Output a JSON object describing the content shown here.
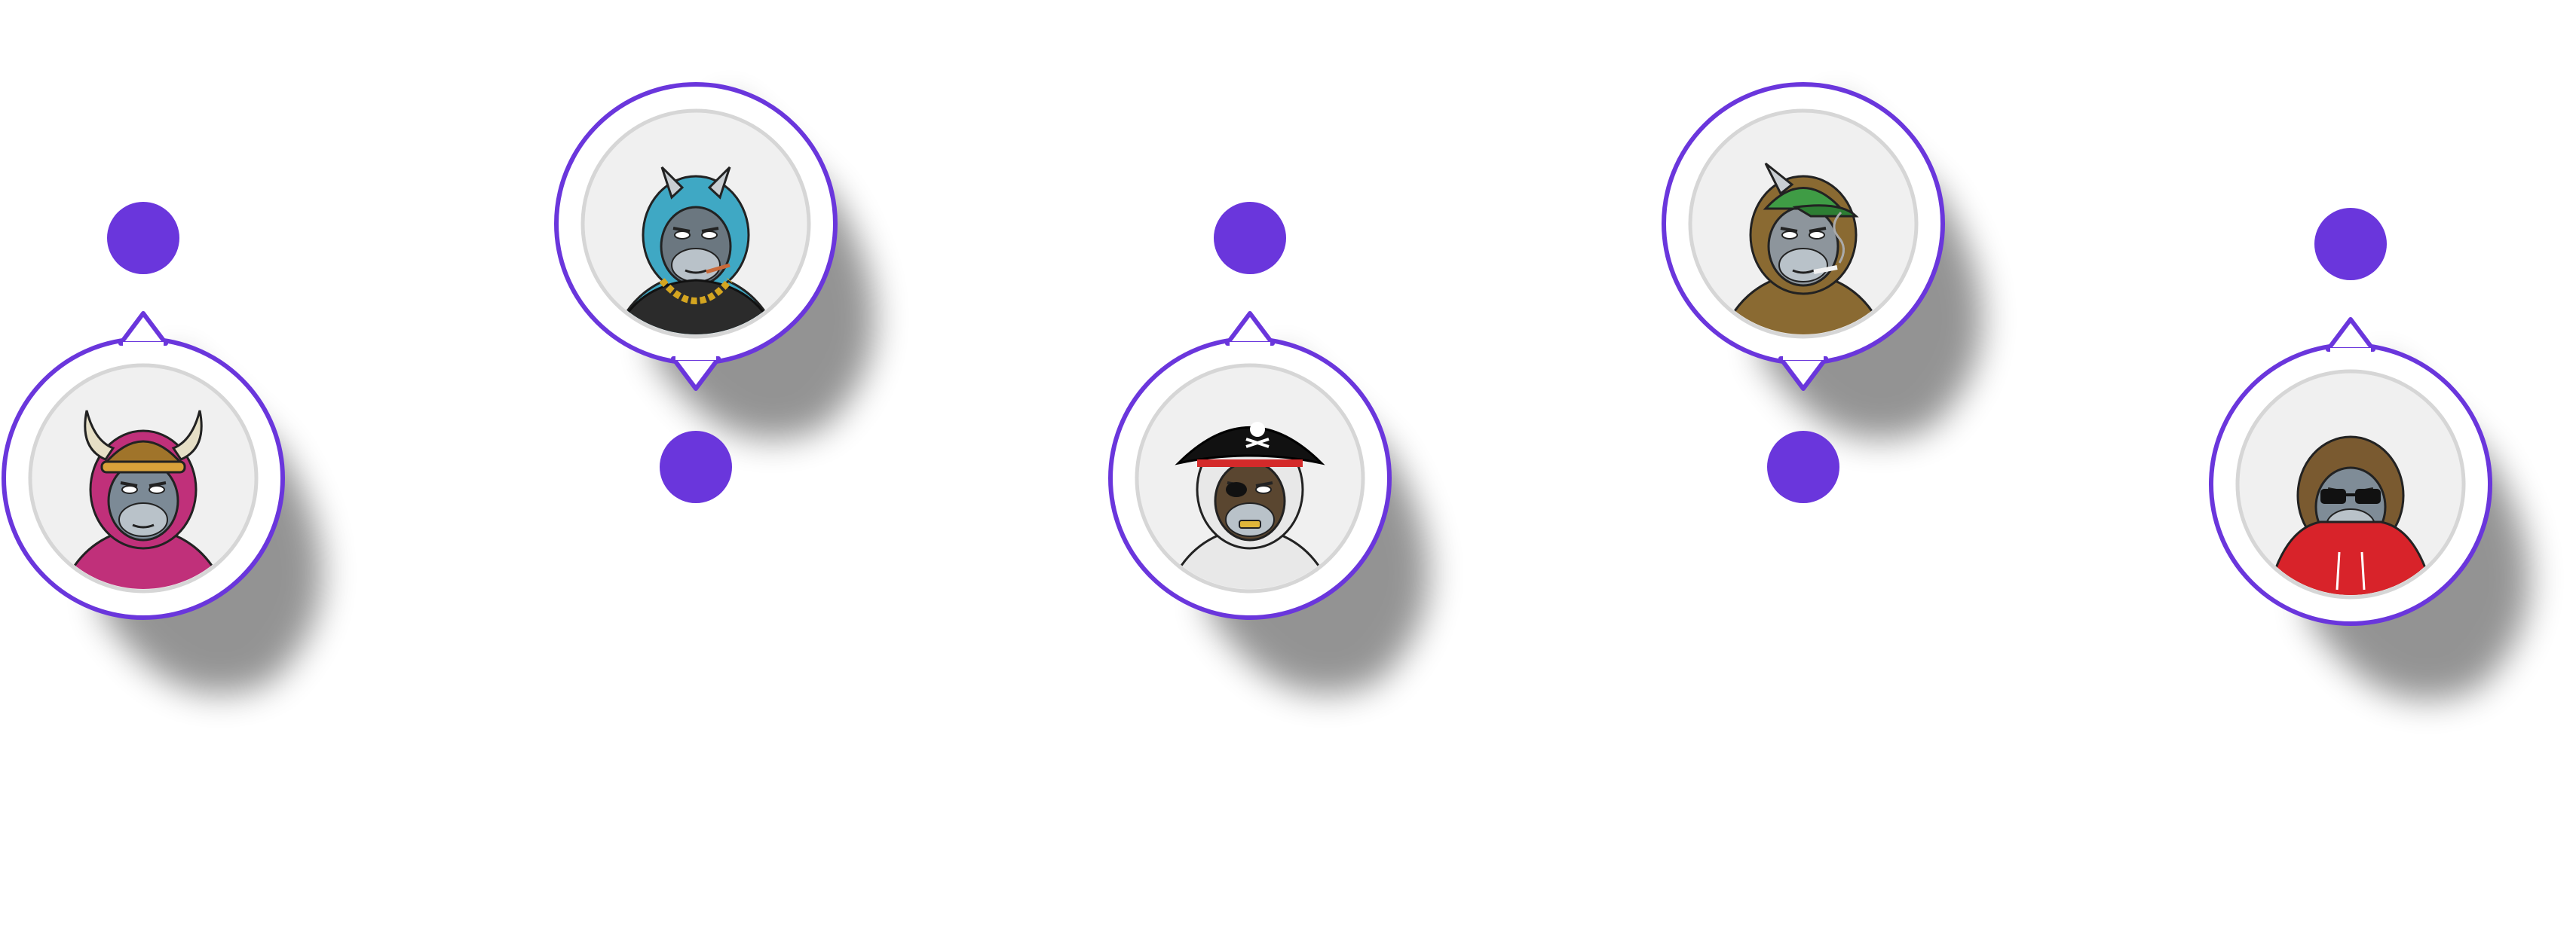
{
  "colors": {
    "accent": "#6a36dc",
    "ring_inner": "#d6d6d6",
    "avatar_bg": "#f0f0f0",
    "shadow": "#000000"
  },
  "nodes": [
    {
      "name": "node-viking-ape",
      "pointer": "up",
      "character": "viking-ape-icon",
      "fur": "#c0307a",
      "skin": "#7c8a96",
      "accessory": "viking-helmet"
    },
    {
      "name": "node-blue-ape",
      "pointer": "down",
      "character": "blue-horned-ape-icon",
      "fur": "#3fa8c4",
      "skin": "#6b7780",
      "accessory": "gold-chain"
    },
    {
      "name": "node-pirate-ape",
      "pointer": "up",
      "character": "pirate-ape-icon",
      "fur": "#e8e8e8",
      "skin": "#5a4630",
      "accessory": "pirate-hat"
    },
    {
      "name": "node-cap-ape",
      "pointer": "down",
      "character": "green-cap-ape-icon",
      "fur": "#8a6a32",
      "skin": "#8d959c",
      "accessory": "green-cap"
    },
    {
      "name": "node-hoodie-ape",
      "pointer": "up",
      "character": "hoodie-ape-icon",
      "fur": "#7a5a30",
      "skin": "#7f8c97",
      "accessory": "sunglasses-hoodie"
    }
  ]
}
